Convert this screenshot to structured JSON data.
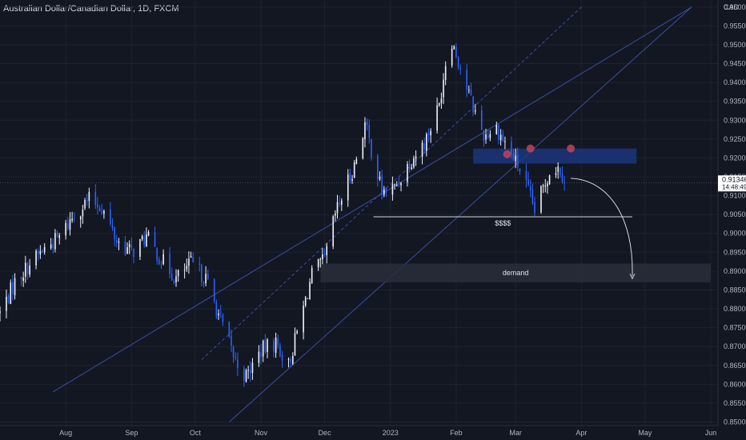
{
  "header": {
    "title": "Australian Dollar/Canadian Dollar, 1D, FXCM"
  },
  "colors": {
    "background": "#131722",
    "bull": "#f0f3fa",
    "bear": "#2962ff",
    "grid": "#1e222d",
    "channel": "#3a4fa0",
    "zone": "#1e3a8a",
    "demand": "#2a2e39",
    "marker": "#c14455"
  },
  "chart_data": {
    "type": "candlestick",
    "symbol": "AUDCAD",
    "currency": "CAD",
    "timeframe": "1D",
    "ylim": [
      0.85,
      0.96
    ],
    "xlim": [
      "2022-07-01",
      "2023-06-04"
    ],
    "y_ticks": [
      "0.85000",
      "0.85500",
      "0.86000",
      "0.86500",
      "0.87000",
      "0.87500",
      "0.88000",
      "0.88500",
      "0.89000",
      "0.89500",
      "0.90000",
      "0.90500",
      "0.91000",
      "0.91500",
      "0.92000",
      "0.92500",
      "0.93000",
      "0.93500",
      "0.94000",
      "0.94500",
      "0.95000",
      "0.95500",
      "0.96000"
    ],
    "x_ticks": [
      {
        "date": "2022-08-01",
        "label": "Aug"
      },
      {
        "date": "2022-09-01",
        "label": "Sep"
      },
      {
        "date": "2022-10-01",
        "label": "Oct"
      },
      {
        "date": "2022-11-01",
        "label": "Nov"
      },
      {
        "date": "2022-12-01",
        "label": "Dec"
      },
      {
        "date": "2023-01-01",
        "label": "2023"
      },
      {
        "date": "2023-02-01",
        "label": "Feb"
      },
      {
        "date": "2023-03-01",
        "label": "Mar"
      },
      {
        "date": "2023-04-01",
        "label": "Apr"
      },
      {
        "date": "2023-05-01",
        "label": "May"
      },
      {
        "date": "2023-06-01",
        "label": "Jun"
      }
    ],
    "price_path": [
      {
        "date": "2022-07-01",
        "close": 0.879
      },
      {
        "date": "2022-07-08",
        "close": 0.887
      },
      {
        "date": "2022-07-15",
        "close": 0.892
      },
      {
        "date": "2022-07-22",
        "close": 0.896
      },
      {
        "date": "2022-07-29",
        "close": 0.899
      },
      {
        "date": "2022-08-05",
        "close": 0.905
      },
      {
        "date": "2022-08-12",
        "close": 0.909
      },
      {
        "date": "2022-08-18",
        "close": 0.907
      },
      {
        "date": "2022-08-25",
        "close": 0.898
      },
      {
        "date": "2022-09-01",
        "close": 0.895
      },
      {
        "date": "2022-09-08",
        "close": 0.899
      },
      {
        "date": "2022-09-15",
        "close": 0.893
      },
      {
        "date": "2022-09-22",
        "close": 0.888
      },
      {
        "date": "2022-09-29",
        "close": 0.892
      },
      {
        "date": "2022-10-06",
        "close": 0.888
      },
      {
        "date": "2022-10-13",
        "close": 0.877
      },
      {
        "date": "2022-10-20",
        "close": 0.866
      },
      {
        "date": "2022-10-25",
        "close": 0.862
      },
      {
        "date": "2022-11-01",
        "close": 0.869
      },
      {
        "date": "2022-11-08",
        "close": 0.871
      },
      {
        "date": "2022-11-14",
        "close": 0.865
      },
      {
        "date": "2022-11-20",
        "close": 0.878
      },
      {
        "date": "2022-11-25",
        "close": 0.889
      },
      {
        "date": "2022-12-01",
        "close": 0.893
      },
      {
        "date": "2022-12-06",
        "close": 0.905
      },
      {
        "date": "2022-12-10",
        "close": 0.911
      },
      {
        "date": "2022-12-15",
        "close": 0.918
      },
      {
        "date": "2022-12-20",
        "close": 0.929
      },
      {
        "date": "2022-12-28",
        "close": 0.911
      },
      {
        "date": "2023-01-03",
        "close": 0.912
      },
      {
        "date": "2023-01-10",
        "close": 0.919
      },
      {
        "date": "2023-01-17",
        "close": 0.924
      },
      {
        "date": "2023-01-24",
        "close": 0.934
      },
      {
        "date": "2023-01-29",
        "close": 0.953
      },
      {
        "date": "2023-02-03",
        "close": 0.944
      },
      {
        "date": "2023-02-08",
        "close": 0.935
      },
      {
        "date": "2023-02-14",
        "close": 0.926
      },
      {
        "date": "2023-02-20",
        "close": 0.928
      },
      {
        "date": "2023-02-26",
        "close": 0.922
      },
      {
        "date": "2023-03-04",
        "close": 0.916
      },
      {
        "date": "2023-03-10",
        "close": 0.906
      },
      {
        "date": "2023-03-14",
        "close": 0.912
      },
      {
        "date": "2023-03-18",
        "close": 0.918
      },
      {
        "date": "2023-03-22",
        "close": 0.917
      },
      {
        "date": "2023-03-25",
        "close": 0.913
      }
    ],
    "current_price": {
      "value": 0.91346,
      "label": "0.91346",
      "countdown": "14:48:49"
    },
    "annotations": {
      "trendlines": [
        {
          "style": "solid",
          "from": {
            "date": "2022-07-26",
            "price": 0.858
          },
          "to": {
            "date": "2023-05-23",
            "price": 0.96
          }
        },
        {
          "style": "dashed",
          "from": {
            "date": "2022-10-04",
            "price": 0.8665
          },
          "to": {
            "date": "2023-04-01",
            "price": 0.96
          }
        },
        {
          "style": "solid",
          "from": {
            "date": "2022-10-17",
            "price": 0.85
          },
          "to": {
            "date": "2023-05-23",
            "price": 0.96
          }
        }
      ],
      "supply_zone": {
        "x1": "2023-02-09",
        "x2": "2023-04-27",
        "top": 0.9225,
        "bottom": 0.9185
      },
      "touches": [
        {
          "date": "2023-02-25",
          "price": 0.921
        },
        {
          "date": "2023-03-08",
          "price": 0.9225
        },
        {
          "date": "2023-03-27",
          "price": 0.9225
        }
      ],
      "liquidity_line": {
        "x1": "2022-12-24",
        "x2": "2023-04-25",
        "price": 0.9044,
        "label": "$$$$"
      },
      "demand_zone": {
        "x1": "2022-11-29",
        "x2": "2023-06-01",
        "top": 0.892,
        "bottom": 0.887,
        "label": "demand"
      },
      "projection_arrow": {
        "from": {
          "date": "2023-03-27",
          "price": 0.9146
        },
        "to": {
          "date": "2023-04-25",
          "price": 0.888
        }
      }
    }
  }
}
